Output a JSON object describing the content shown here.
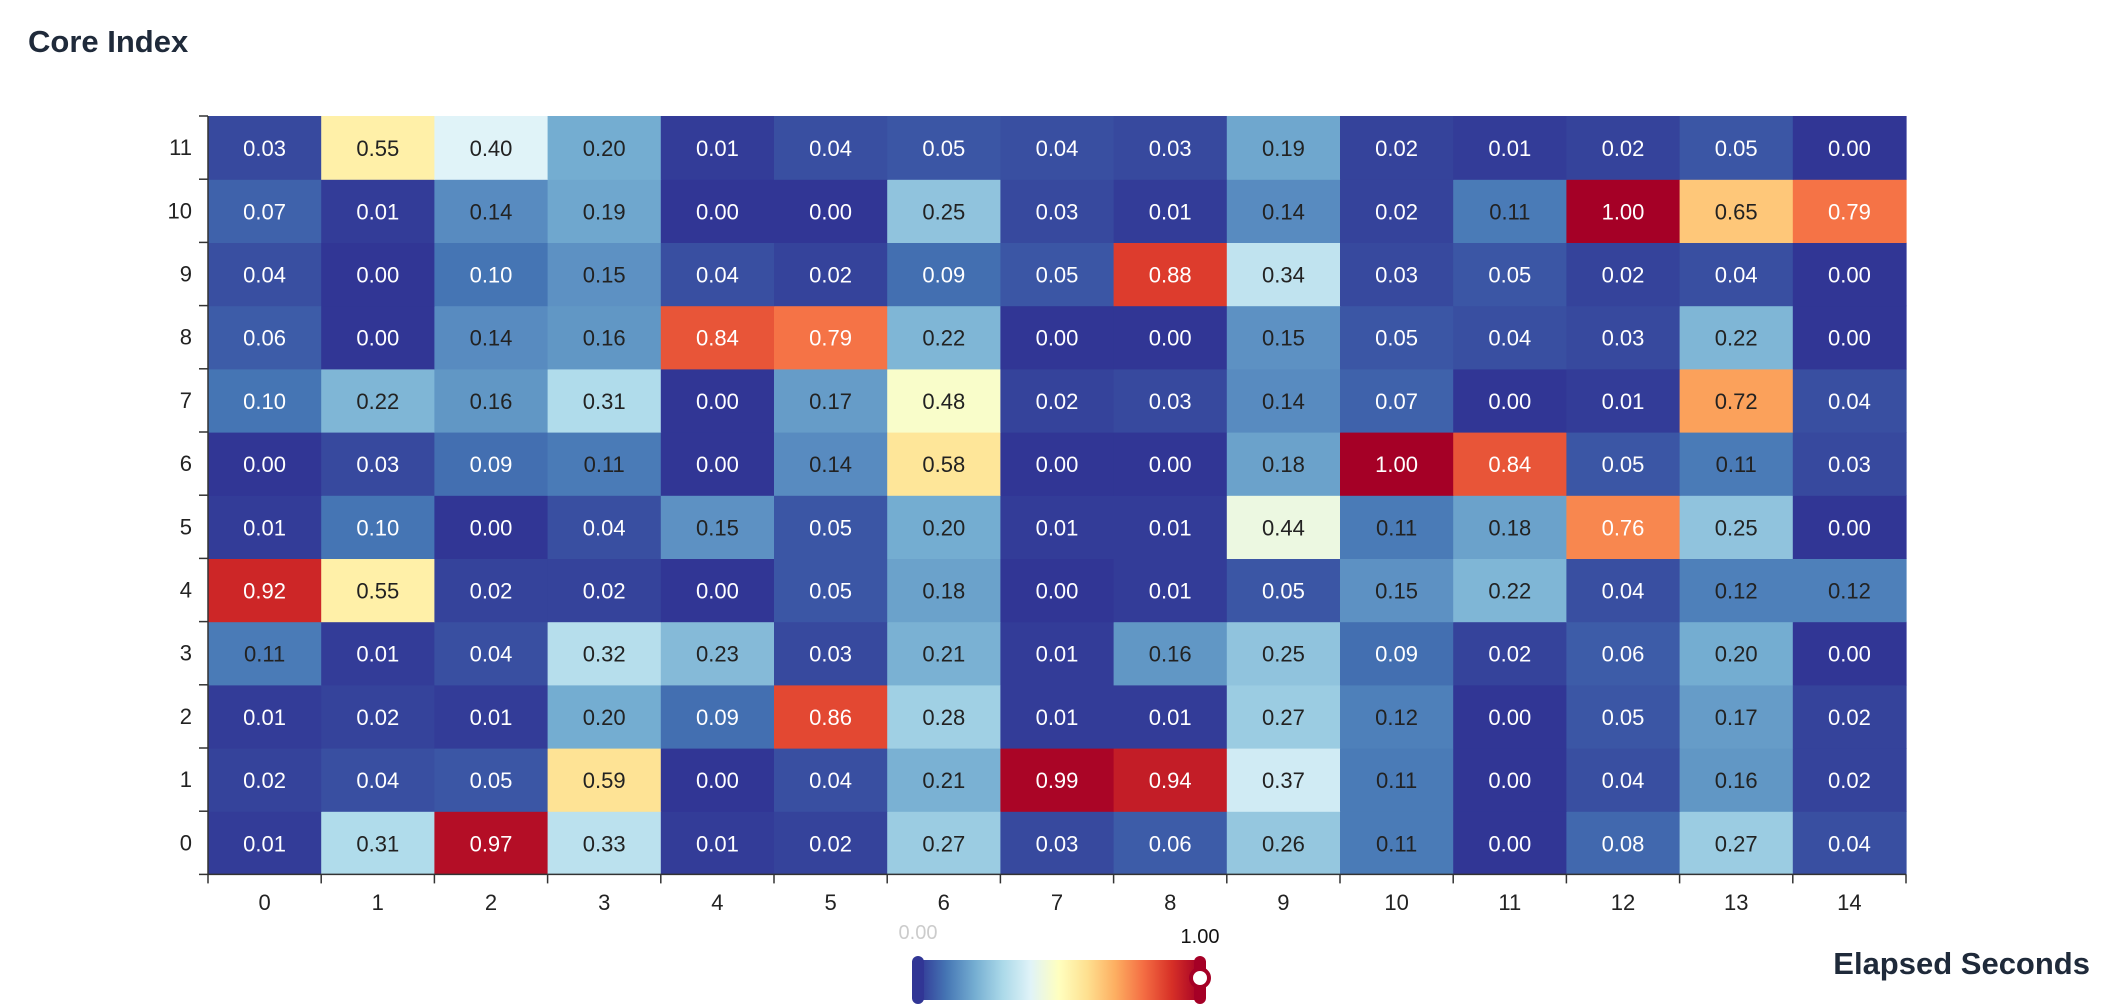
{
  "chart_data": {
    "type": "heatmap",
    "xlabel": "Elapsed Seconds",
    "ylabel": "Core Index",
    "x_categories": [
      "0",
      "1",
      "2",
      "3",
      "4",
      "5",
      "6",
      "7",
      "8",
      "9",
      "10",
      "11",
      "12",
      "13",
      "14"
    ],
    "y_categories": [
      "0",
      "1",
      "2",
      "3",
      "4",
      "5",
      "6",
      "7",
      "8",
      "9",
      "10",
      "11"
    ],
    "values": [
      [
        0.01,
        0.31,
        0.97,
        0.33,
        0.01,
        0.02,
        0.27,
        0.03,
        0.06,
        0.26,
        0.11,
        0.0,
        0.08,
        0.27,
        0.04
      ],
      [
        0.02,
        0.04,
        0.05,
        0.59,
        0.0,
        0.04,
        0.21,
        0.99,
        0.94,
        0.37,
        0.11,
        0.0,
        0.04,
        0.16,
        0.02
      ],
      [
        0.01,
        0.02,
        0.01,
        0.2,
        0.09,
        0.86,
        0.28,
        0.01,
        0.01,
        0.27,
        0.12,
        0.0,
        0.05,
        0.17,
        0.02
      ],
      [
        0.11,
        0.01,
        0.04,
        0.32,
        0.23,
        0.03,
        0.21,
        0.01,
        0.16,
        0.25,
        0.09,
        0.02,
        0.06,
        0.2,
        0.0
      ],
      [
        0.92,
        0.55,
        0.02,
        0.02,
        0.0,
        0.05,
        0.18,
        0.0,
        0.01,
        0.05,
        0.15,
        0.22,
        0.04,
        0.12,
        0.12
      ],
      [
        0.01,
        0.1,
        0.0,
        0.04,
        0.15,
        0.05,
        0.2,
        0.01,
        0.01,
        0.44,
        0.11,
        0.18,
        0.76,
        0.25,
        0.0
      ],
      [
        0.0,
        0.03,
        0.09,
        0.11,
        0.0,
        0.14,
        0.58,
        0.0,
        0.0,
        0.18,
        1.0,
        0.84,
        0.05,
        0.11,
        0.03
      ],
      [
        0.1,
        0.22,
        0.16,
        0.31,
        0.0,
        0.17,
        0.48,
        0.02,
        0.03,
        0.14,
        0.07,
        0.0,
        0.01,
        0.72,
        0.04
      ],
      [
        0.06,
        0.0,
        0.14,
        0.16,
        0.84,
        0.79,
        0.22,
        0.0,
        0.0,
        0.15,
        0.05,
        0.04,
        0.03,
        0.22,
        0.0
      ],
      [
        0.04,
        0.0,
        0.1,
        0.15,
        0.04,
        0.02,
        0.09,
        0.05,
        0.88,
        0.34,
        0.03,
        0.05,
        0.02,
        0.04,
        0.0
      ],
      [
        0.07,
        0.01,
        0.14,
        0.19,
        0.0,
        0.0,
        0.25,
        0.03,
        0.01,
        0.14,
        0.02,
        0.11,
        1.0,
        0.65,
        0.79
      ],
      [
        0.03,
        0.55,
        0.4,
        0.2,
        0.01,
        0.04,
        0.05,
        0.04,
        0.03,
        0.19,
        0.02,
        0.01,
        0.02,
        0.05,
        0.0
      ]
    ],
    "value_range": [
      0,
      1
    ],
    "colormap": [
      "#313695",
      "#4575b4",
      "#74add1",
      "#abd9e9",
      "#e0f3f8",
      "#ffffbf",
      "#fee090",
      "#fdae61",
      "#f46d43",
      "#d73027",
      "#a50026"
    ],
    "visual_map": {
      "min_label": "0.00",
      "max_label": "1.00",
      "selected_range": [
        0,
        1
      ]
    },
    "legend": "bottom-center"
  }
}
